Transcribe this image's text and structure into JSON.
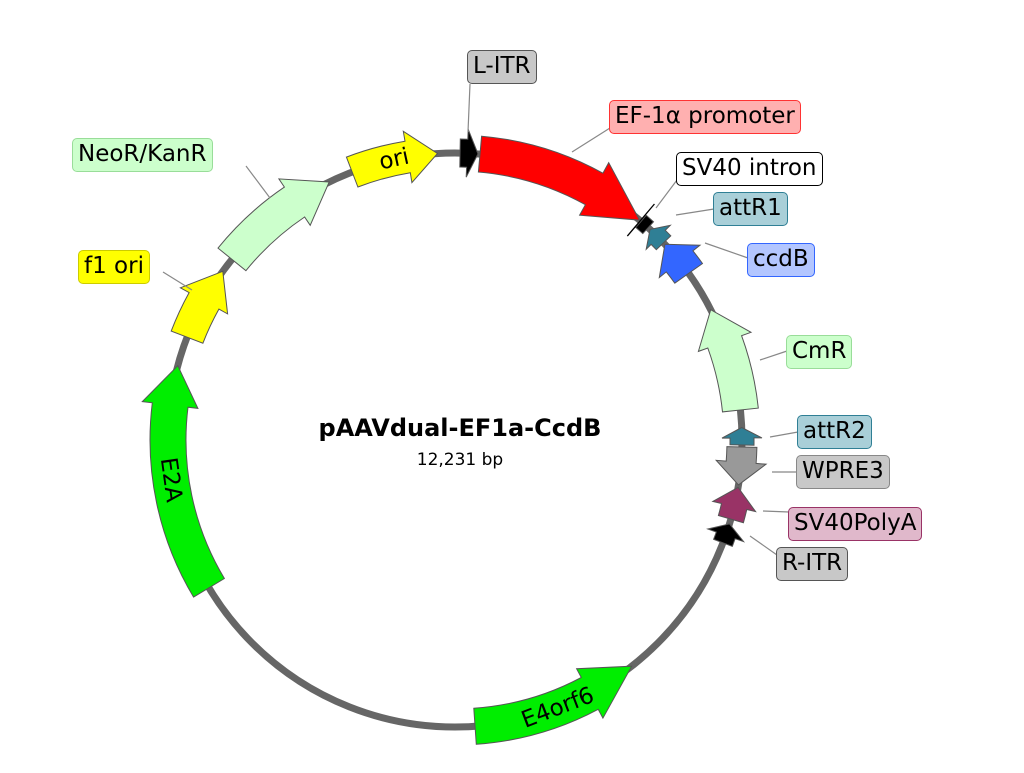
{
  "plasmid": {
    "name": "pAAVdual-EF1a-CcdB",
    "size": "12,231 bp"
  },
  "backbone_color": "#666666",
  "features": [
    {
      "id": "litr",
      "name": "L-ITR",
      "fill": "#000000",
      "direction": "forward",
      "label_bg": "#c8c8c8",
      "label_border": "#555555"
    },
    {
      "id": "ef1a",
      "name": "EF-1α promoter",
      "fill": "#ff0000",
      "direction": "forward",
      "label_bg": "#ffb0b0",
      "label_border": "#ff3333"
    },
    {
      "id": "sv40intron",
      "name": "SV40 intron",
      "fill": "#000000",
      "direction": "none",
      "label_bg": "#ffffff",
      "label_border": "#000000"
    },
    {
      "id": "attr1",
      "name": "attR1",
      "fill": "#2f7f95",
      "direction": "reverse",
      "label_bg": "#a9cfd8",
      "label_border": "#2f7f95"
    },
    {
      "id": "ccdb",
      "name": "ccdB",
      "fill": "#3366ff",
      "direction": "reverse",
      "label_bg": "#b3c6ff",
      "label_border": "#3366ff"
    },
    {
      "id": "cmr",
      "name": "CmR",
      "fill": "#ccffcc",
      "direction": "reverse",
      "label_bg": "#ccffcc",
      "label_border": "#99dd99"
    },
    {
      "id": "attr2",
      "name": "attR2",
      "fill": "#2f7f95",
      "direction": "reverse",
      "label_bg": "#a9cfd8",
      "label_border": "#2f7f95"
    },
    {
      "id": "wpre3",
      "name": "WPRE3",
      "fill": "#999999",
      "direction": "forward",
      "label_bg": "#c8c8c8",
      "label_border": "#888888"
    },
    {
      "id": "sv40pa",
      "name": "SV40PolyA",
      "fill": "#993366",
      "direction": "reverse",
      "label_bg": "#e0b8cb",
      "label_border": "#993366"
    },
    {
      "id": "ritr",
      "name": "R-ITR",
      "fill": "#000000",
      "direction": "reverse",
      "label_bg": "#c8c8c8",
      "label_border": "#555555"
    },
    {
      "id": "e4orf6",
      "name": "E4orf6",
      "fill": "#00ee00",
      "direction": "reverse"
    },
    {
      "id": "e2a",
      "name": "E2A",
      "fill": "#00ee00",
      "direction": "forward"
    },
    {
      "id": "f1ori",
      "name": "f1 ori",
      "fill": "#ffff00",
      "direction": "forward",
      "label_bg": "#ffff00",
      "label_border": "#cccc00"
    },
    {
      "id": "neor",
      "name": "NeoR/KanR",
      "fill": "#ccffcc",
      "direction": "forward",
      "label_bg": "#ccffcc",
      "label_border": "#99dd99"
    },
    {
      "id": "ori",
      "name": "ori",
      "fill": "#ffff00",
      "direction": "forward"
    }
  ]
}
